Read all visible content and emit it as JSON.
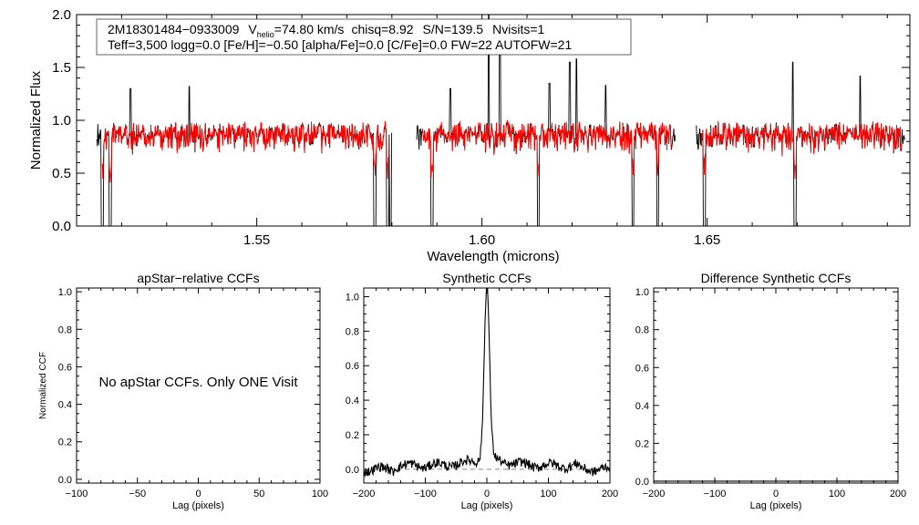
{
  "chart_data": [
    {
      "id": "spectrum",
      "type": "line",
      "title": "",
      "xlabel": "Wavelength (microns)",
      "ylabel": "Normalized Flux",
      "xlim": [
        1.51,
        1.695
      ],
      "ylim": [
        0.0,
        2.0
      ],
      "xticks": [
        {
          "v": 1.55,
          "label": "1.55"
        },
        {
          "v": 1.6,
          "label": "1.60"
        },
        {
          "v": 1.65,
          "label": "1.65"
        }
      ],
      "yticks": [
        {
          "v": 0.0,
          "label": "0.0"
        },
        {
          "v": 0.5,
          "label": "0.5"
        },
        {
          "v": 1.0,
          "label": "1.0"
        },
        {
          "v": 1.5,
          "label": "1.5"
        },
        {
          "v": 2.0,
          "label": "2.0"
        }
      ],
      "info": {
        "star": "2M18301484−0933009",
        "vhelio_symbol": "V",
        "vhelio_sub": "helio",
        "vhelio_value": "=74.80 km/s",
        "chisq": "chisq=8.92",
        "snr": "S/N=139.5",
        "nvisits": "Nvisits=1",
        "params": "Teff=3,500 logg=0.0 [Fe/H]=−0.50 [alpha/Fe]=0.0 [C/Fe]=0.0 FW=22 AUTOFW=21"
      },
      "chips": [
        [
          1.5145,
          1.58
        ],
        [
          1.5855,
          1.643
        ],
        [
          1.6475,
          1.694
        ]
      ],
      "series": [
        {
          "name": "observed",
          "color": "#000000",
          "continuum": 0.92,
          "noise": 0.13
        },
        {
          "name": "model",
          "color": "#ff0000",
          "continuum": 0.92,
          "noise": 0.09
        }
      ],
      "absorption_lines": [
        1.5157,
        1.5175,
        1.5762,
        1.5791,
        1.5797,
        1.5889,
        1.6125,
        1.6335,
        1.639,
        1.6494,
        1.6695
      ],
      "emission_spikes": [
        {
          "x": 1.522,
          "y": 1.3
        },
        {
          "x": 1.535,
          "y": 1.32
        },
        {
          "x": 1.593,
          "y": 1.3
        },
        {
          "x": 1.6015,
          "y": 2.05
        },
        {
          "x": 1.604,
          "y": 1.72
        },
        {
          "x": 1.615,
          "y": 1.35
        },
        {
          "x": 1.621,
          "y": 1.58
        },
        {
          "x": 1.6195,
          "y": 1.55
        },
        {
          "x": 1.6275,
          "y": 1.33
        },
        {
          "x": 1.669,
          "y": 1.55
        },
        {
          "x": 1.684,
          "y": 1.42
        }
      ]
    },
    {
      "id": "apstar",
      "type": "line",
      "title": "apStar−relative CCFs",
      "xlabel": "Lag (pixels)",
      "ylabel": "Normalized CCF",
      "xlim": [
        -100,
        100
      ],
      "ylim": [
        -0.02,
        1.02
      ],
      "xticks": [
        {
          "v": -100,
          "label": "−100"
        },
        {
          "v": -50,
          "label": "−50"
        },
        {
          "v": 0,
          "label": "0"
        },
        {
          "v": 50,
          "label": "50"
        },
        {
          "v": 100,
          "label": "100"
        }
      ],
      "yticks": [
        {
          "v": 0.0,
          "label": "0.0"
        },
        {
          "v": 0.2,
          "label": "0.2"
        },
        {
          "v": 0.4,
          "label": "0.4"
        },
        {
          "v": 0.6,
          "label": "0.6"
        },
        {
          "v": 0.8,
          "label": "0.8"
        },
        {
          "v": 1.0,
          "label": "1.0"
        }
      ],
      "annotation": "No apStar CCFs.  Only ONE Visit",
      "series": []
    },
    {
      "id": "synthetic",
      "type": "line",
      "title": "Synthetic CCFs",
      "xlabel": "Lag (pixels)",
      "ylabel": "",
      "xlim": [
        -200,
        200
      ],
      "ylim": [
        -0.08,
        1.05
      ],
      "xticks": [
        {
          "v": -200,
          "label": "−200"
        },
        {
          "v": -100,
          "label": "−100"
        },
        {
          "v": 0,
          "label": "0"
        },
        {
          "v": 100,
          "label": "100"
        },
        {
          "v": 200,
          "label": "200"
        }
      ],
      "yticks": [
        {
          "v": 0.0,
          "label": "0.0"
        },
        {
          "v": 0.2,
          "label": "0.2"
        },
        {
          "v": 0.4,
          "label": "0.4"
        },
        {
          "v": 0.6,
          "label": "0.6"
        },
        {
          "v": 0.8,
          "label": "0.8"
        },
        {
          "v": 1.0,
          "label": "1.0"
        }
      ],
      "baseline": 0.0,
      "series": [
        {
          "name": "ccf",
          "color": "#000000",
          "peak_lag": 0,
          "peak": 1.0,
          "background": 0.02
        }
      ]
    },
    {
      "id": "difference",
      "type": "line",
      "title": "Difference Synthetic CCFs",
      "xlabel": "Lag (pixels)",
      "ylabel": "",
      "xlim": [
        -200,
        200
      ],
      "ylim": [
        -0.01,
        1.02
      ],
      "xticks": [
        {
          "v": -200,
          "label": "−200"
        },
        {
          "v": -100,
          "label": "−100"
        },
        {
          "v": 0,
          "label": "0"
        },
        {
          "v": 100,
          "label": "100"
        },
        {
          "v": 200,
          "label": "200"
        }
      ],
      "yticks": [
        {
          "v": 0.0,
          "label": "0.0"
        },
        {
          "v": 0.2,
          "label": "0.2"
        },
        {
          "v": 0.4,
          "label": "0.4"
        },
        {
          "v": 0.6,
          "label": "0.6"
        },
        {
          "v": 0.8,
          "label": "0.8"
        },
        {
          "v": 1.0,
          "label": "1.0"
        }
      ],
      "series": [
        {
          "name": "difference",
          "color": "#000000",
          "value": 0.0
        }
      ]
    }
  ]
}
